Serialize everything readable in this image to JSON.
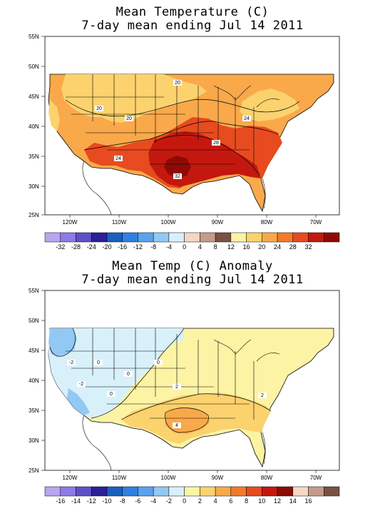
{
  "map1": {
    "title_line1": "Mean Temperature (C)",
    "title_line2": "7-day mean ending Jul 14 2011",
    "lat_labels": [
      "55N",
      "50N",
      "45N",
      "40N",
      "35N",
      "30N",
      "25N"
    ],
    "lon_labels": [
      "120W",
      "110W",
      "100W",
      "90W",
      "80W",
      "70W"
    ],
    "contour_labels": [
      "20",
      "20",
      "20",
      "24",
      "24",
      "28",
      "32"
    ],
    "colorbar_labels": [
      "-32",
      "-28",
      "-24",
      "-20",
      "-16",
      "-12",
      "-8",
      "-4",
      "0",
      "4",
      "8",
      "12",
      "16",
      "20",
      "24",
      "28",
      "32"
    ],
    "colorbar_colors": [
      "#b7a6f0",
      "#8f7ae6",
      "#6050c8",
      "#2c1f9a",
      "#1a5fc0",
      "#2f80e0",
      "#5aa3ec",
      "#92c8f4",
      "#d8f0fa",
      "#f5d7c4",
      "#c49a8c",
      "#7a5244",
      "#fcf3a4",
      "#fbd26e",
      "#f9a94a",
      "#f37a2a",
      "#e74b1f",
      "#c4180f",
      "#8e0a05"
    ]
  },
  "map2": {
    "title_line1": "Mean Temp (C) Anomaly",
    "title_line2": "7-day mean ending Jul 14 2011",
    "lat_labels": [
      "55N",
      "50N",
      "45N",
      "40N",
      "35N",
      "30N",
      "25N"
    ],
    "lon_labels": [
      "120W",
      "110W",
      "100W",
      "90W",
      "80W",
      "70W"
    ],
    "contour_labels": [
      "-2",
      "-2",
      "0",
      "0",
      "0",
      "0",
      "2",
      "2",
      "4"
    ],
    "colorbar_labels": [
      "-16",
      "-14",
      "-12",
      "-10",
      "-8",
      "-6",
      "-4",
      "-2",
      "0",
      "2",
      "4",
      "6",
      "8",
      "10",
      "12",
      "14",
      "16"
    ],
    "colorbar_colors": [
      "#b7a6f0",
      "#8f7ae6",
      "#6050c8",
      "#2c1f9a",
      "#1a5fc0",
      "#2f80e0",
      "#5aa3ec",
      "#92c8f4",
      "#d8f0fa",
      "#fcf3a4",
      "#fbd26e",
      "#f9a94a",
      "#f37a2a",
      "#e74b1f",
      "#c4180f",
      "#8e0a05",
      "#f5d7c4",
      "#c49a8c",
      "#7a5244"
    ]
  }
}
